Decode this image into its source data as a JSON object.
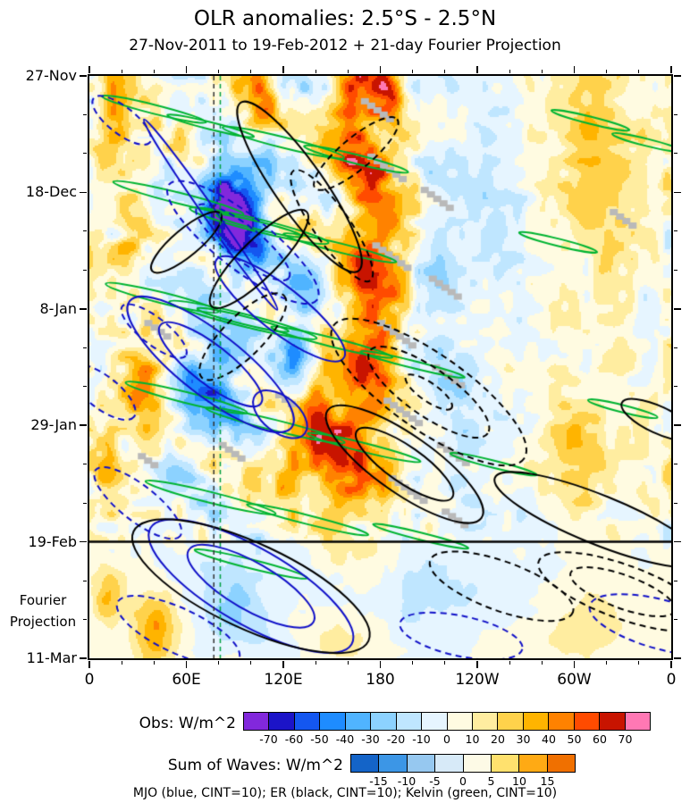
{
  "title": "OLR anomalies: 2.5°S - 2.5°N",
  "subtitle": "27-Nov-2011 to 19-Feb-2012 + 21-day Fourier Projection",
  "caption": "MJO (blue, CINT=10); ER (black, CINT=10); Kelvin (green, CINT=10)",
  "annotations": {
    "fourier_line1": "Fourier",
    "fourier_line2": "Projection"
  },
  "chart_data": {
    "type": "heatmap",
    "variant": "hovmoller-time-longitude",
    "title": "OLR anomalies: 2.5°S - 2.5°N",
    "subtitle": "27-Nov-2011 to 19-Feb-2012 + 21-day Fourier Projection",
    "x_axis": {
      "ticks": [
        {
          "lon": 0,
          "label": "0"
        },
        {
          "lon": 60,
          "label": "60E"
        },
        {
          "lon": 120,
          "label": "120E"
        },
        {
          "lon": 180,
          "label": "180"
        },
        {
          "lon": 240,
          "label": "120W"
        },
        {
          "lon": 300,
          "label": "60W"
        },
        {
          "lon": 360,
          "label": "0"
        }
      ],
      "minor_step_deg": 20,
      "range_deg": [
        0,
        360
      ]
    },
    "y_axis": {
      "direction": "time-increases-downward",
      "span_days": 105,
      "minor_step_days": 7,
      "ticks": [
        {
          "day": 0,
          "label": "27-Nov"
        },
        {
          "day": 21,
          "label": "18-Dec"
        },
        {
          "day": 42,
          "label": "8-Jan"
        },
        {
          "day": 63,
          "label": "29-Jan"
        },
        {
          "day": 84,
          "label": "19-Feb"
        },
        {
          "day": 105,
          "label": "11-Mar"
        }
      ]
    },
    "forecast_start_day": 84,
    "forecast_label": "Fourier Projection",
    "obs_colorbar": {
      "label": "Obs: W/m^2",
      "tick_values": [
        -70,
        -60,
        -50,
        -40,
        -30,
        -20,
        -10,
        0,
        10,
        20,
        30,
        40,
        50,
        60,
        70
      ],
      "colors": [
        "#8228dc",
        "#1c14c8",
        "#1457f0",
        "#1e8cff",
        "#50b4ff",
        "#8cd2ff",
        "#bfe6ff",
        "#e6f5ff",
        "#fffbe1",
        "#ffeda0",
        "#ffd24b",
        "#ffb400",
        "#ff8200",
        "#ff4b00",
        "#c81400",
        "#ff78b4"
      ]
    },
    "waves_colorbar": {
      "label": "Sum of Waves: W/m^2",
      "tick_values": [
        -15,
        -10,
        -5,
        0,
        5,
        10,
        15
      ],
      "colors": [
        "#1464c8",
        "#3c96e6",
        "#96c8f0",
        "#d7eaf8",
        "#fdfae6",
        "#ffe16e",
        "#ffaa14",
        "#f07000"
      ]
    },
    "contour_legend": "MJO (blue, CINT=10); ER (black, CINT=10); Kelvin (green, CINT=10)",
    "missing_color": "#b9b9b9",
    "reference_lines": [
      {
        "lon": 77,
        "color": "#333333",
        "dash": [
          5,
          4
        ]
      },
      {
        "lon": 81,
        "color": "#00a040",
        "dash": [
          5,
          4
        ]
      }
    ],
    "noise": {
      "amp_obs": 26,
      "amp_proj": 7
    },
    "anomaly_blobs_format": "[lon_deg, day, sigma_lon_deg, sigma_day, amplitude_wm2]",
    "anomaly_blobs": [
      [
        175,
        40,
        20,
        40,
        55
      ],
      [
        160,
        8,
        14,
        10,
        45
      ],
      [
        150,
        70,
        16,
        12,
        50
      ],
      [
        185,
        3,
        10,
        5,
        40
      ],
      [
        95,
        25,
        16,
        9,
        -75
      ],
      [
        80,
        20,
        10,
        7,
        -45
      ],
      [
        75,
        55,
        22,
        11,
        -45
      ],
      [
        130,
        45,
        13,
        8,
        -35
      ],
      [
        105,
        5,
        13,
        6,
        42
      ],
      [
        15,
        8,
        12,
        9,
        35
      ],
      [
        35,
        55,
        14,
        9,
        42
      ],
      [
        10,
        70,
        10,
        8,
        35
      ],
      [
        25,
        30,
        10,
        8,
        28
      ],
      [
        140,
        60,
        9,
        7,
        42
      ],
      [
        125,
        70,
        12,
        6,
        40
      ],
      [
        300,
        68,
        18,
        10,
        30
      ],
      [
        255,
        30,
        16,
        11,
        -16
      ],
      [
        230,
        57,
        14,
        11,
        -18
      ],
      [
        320,
        14,
        22,
        14,
        14
      ],
      [
        345,
        46,
        10,
        9,
        -14
      ],
      [
        215,
        35,
        14,
        18,
        -16
      ],
      [
        330,
        40,
        40,
        40,
        10
      ],
      [
        300,
        10,
        30,
        20,
        12
      ],
      [
        240,
        15,
        20,
        12,
        -12
      ],
      [
        40,
        100,
        14,
        7,
        38
      ],
      [
        12,
        94,
        9,
        5,
        30
      ],
      [
        90,
        94,
        26,
        8,
        -20
      ],
      [
        200,
        93,
        55,
        9,
        -14
      ],
      [
        310,
        99,
        25,
        7,
        14
      ],
      [
        150,
        101,
        25,
        6,
        10
      ],
      [
        265,
        103,
        30,
        5,
        8
      ]
    ],
    "wave_overlays": {
      "kelvin": {
        "name": "Kelvin",
        "color": "#00b432",
        "cint_wm2": 10,
        "angle_deg": 14,
        "events_format": "[lon_deg, day, length_px, width_px, rings]",
        "events": [
          [
            40,
            6,
            120,
            10,
            1
          ],
          [
            75,
            9,
            100,
            8,
            1
          ],
          [
            120,
            12,
            140,
            12,
            1
          ],
          [
            165,
            15,
            120,
            10,
            1
          ],
          [
            55,
            22,
            150,
            12,
            1
          ],
          [
            105,
            27,
            160,
            14,
            2
          ],
          [
            155,
            31,
            130,
            10,
            1
          ],
          [
            45,
            40,
            130,
            12,
            1
          ],
          [
            95,
            44,
            170,
            14,
            2
          ],
          [
            150,
            48,
            140,
            10,
            1
          ],
          [
            200,
            52,
            120,
            8,
            1
          ],
          [
            60,
            58,
            140,
            12,
            1
          ],
          [
            115,
            63,
            160,
            12,
            1
          ],
          [
            170,
            67,
            130,
            10,
            1
          ],
          [
            75,
            76,
            150,
            12,
            1
          ],
          [
            135,
            80,
            140,
            10,
            1
          ],
          [
            205,
            83,
            110,
            8,
            1
          ],
          [
            310,
            8,
            90,
            8,
            1
          ],
          [
            345,
            12,
            80,
            8,
            1
          ],
          [
            290,
            30,
            90,
            8,
            1
          ],
          [
            250,
            70,
            100,
            8,
            1
          ],
          [
            100,
            88,
            130,
            10,
            1
          ],
          [
            330,
            60,
            80,
            8,
            1
          ]
        ]
      },
      "mjo": {
        "name": "MJO",
        "color": "#1010c8",
        "cint_wm2": 10,
        "angle_deg": 38,
        "events_format": "[lon_deg, day, length_px, width_px, dashed, angle_deg, rings]",
        "events": [
          [
            20,
            8,
            80,
            30,
            1,
            38,
            1
          ],
          [
            75,
            25,
            260,
            14,
            0,
            55,
            1
          ],
          [
            95,
            30,
            210,
            60,
            1,
            38,
            2
          ],
          [
            118,
            42,
            180,
            50,
            0,
            38,
            1
          ],
          [
            75,
            52,
            230,
            70,
            0,
            38,
            2
          ],
          [
            40,
            46,
            90,
            30,
            1,
            38,
            1
          ],
          [
            118,
            61,
            70,
            40,
            0,
            38,
            1
          ],
          [
            30,
            77,
            120,
            40,
            1,
            38,
            1
          ],
          [
            8,
            57,
            90,
            36,
            1,
            38,
            1
          ],
          [
            100,
            92,
            260,
            85,
            0,
            30,
            2
          ],
          [
            55,
            100,
            150,
            50,
            1,
            25,
            1
          ],
          [
            355,
            99,
            170,
            55,
            1,
            15,
            1
          ],
          [
            230,
            101,
            140,
            45,
            1,
            12,
            1
          ]
        ]
      },
      "er": {
        "name": "ER",
        "color": "#000000",
        "cint_wm2": 10,
        "angle_deg": -42,
        "events_format": "[lon_deg, day, length_px, width_px, dashed, angle_deg, rings]",
        "events": [
          [
            130,
            20,
            230,
            55,
            0,
            55,
            1
          ],
          [
            150,
            27,
            150,
            40,
            1,
            55,
            1
          ],
          [
            105,
            33,
            150,
            42,
            0,
            -45,
            1
          ],
          [
            95,
            47,
            130,
            45,
            1,
            -45,
            1
          ],
          [
            60,
            30,
            100,
            30,
            0,
            -40,
            1
          ],
          [
            165,
            14,
            120,
            35,
            1,
            -40,
            1
          ],
          [
            210,
            57,
            260,
            85,
            1,
            35,
            3
          ],
          [
            195,
            70,
            210,
            65,
            0,
            35,
            2
          ],
          [
            255,
            92,
            170,
            55,
            1,
            20,
            1
          ],
          [
            315,
            80,
            250,
            55,
            0,
            22,
            1
          ],
          [
            330,
            93,
            200,
            60,
            1,
            20,
            2
          ],
          [
            352,
            62,
            90,
            30,
            0,
            25,
            1
          ],
          [
            100,
            92,
            290,
            95,
            0,
            25,
            1
          ]
        ]
      }
    },
    "missing_marks_format": "[lon_deg, day, count]",
    "missing_marks": [
      [
        168,
        4,
        5
      ],
      [
        172,
        14,
        6
      ],
      [
        205,
        20,
        5
      ],
      [
        175,
        30,
        6
      ],
      [
        210,
        36,
        5
      ],
      [
        178,
        44,
        6
      ],
      [
        212,
        52,
        5
      ],
      [
        182,
        58,
        6
      ],
      [
        215,
        66,
        5
      ],
      [
        185,
        72,
        6
      ],
      [
        218,
        78,
        4
      ],
      [
        34,
        44,
        4
      ],
      [
        80,
        66,
        4
      ],
      [
        322,
        24,
        4
      ],
      [
        30,
        68,
        3
      ],
      [
        115,
        57,
        3
      ]
    ]
  }
}
